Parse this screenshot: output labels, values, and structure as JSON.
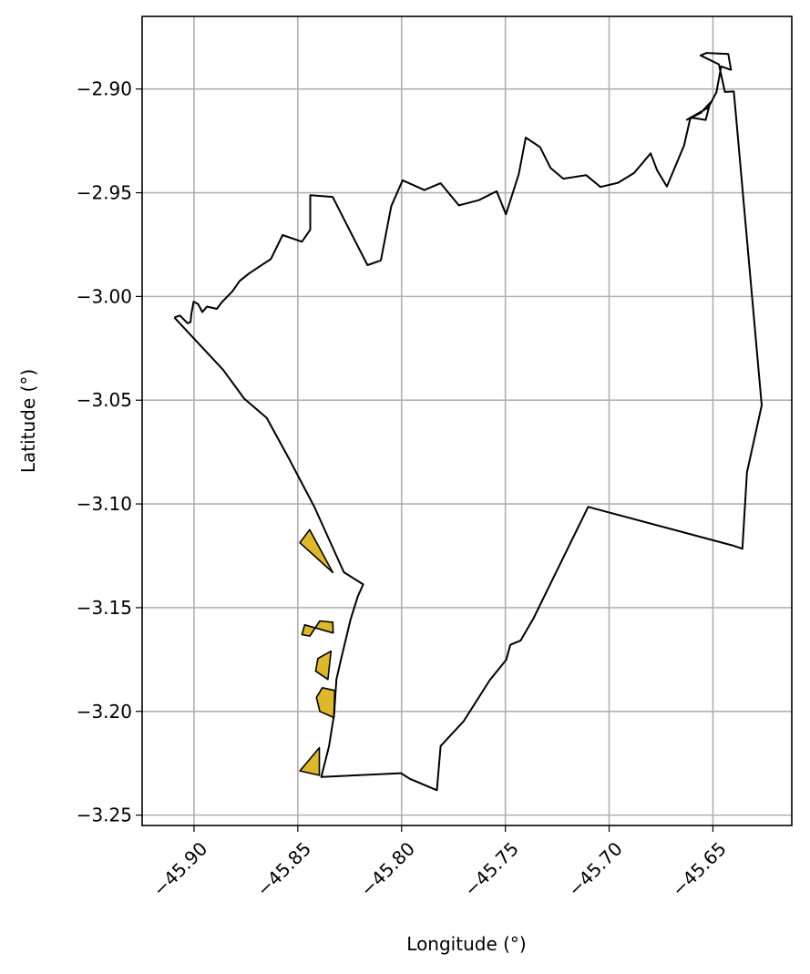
{
  "map": {
    "xlabel": "Longitude (°)",
    "ylabel": "Latitude (°)",
    "xlim": [
      -45.925,
      -45.612
    ],
    "ylim": [
      -3.255,
      -2.865
    ],
    "xticks": [
      -45.9,
      -45.85,
      -45.8,
      -45.75,
      -45.7,
      -45.65
    ],
    "xtick_labels": [
      "−45.90",
      "−45.85",
      "−45.80",
      "−45.75",
      "−45.70",
      "−45.65"
    ],
    "yticks": [
      -2.9,
      -2.95,
      -3.0,
      -3.05,
      -3.1,
      -3.15,
      -3.2,
      -3.25
    ],
    "ytick_labels": [
      "−2.90",
      "−2.95",
      "−3.00",
      "−3.05",
      "−3.10",
      "−3.15",
      "−3.20",
      "−3.25"
    ],
    "grid": true,
    "colors": {
      "boundary": "#000000",
      "highlight_fill": "#ddb92a",
      "highlight_edge": "#3a2fb8",
      "grid": "#b0b0b0"
    },
    "boundary": [
      [
        -45.9095,
        -3.0101
      ],
      [
        -45.9068,
        -3.0092
      ],
      [
        -45.9031,
        -3.0129
      ],
      [
        -45.9017,
        -3.0124
      ],
      [
        -45.9013,
        -3.0084
      ],
      [
        -45.9002,
        -3.0025
      ],
      [
        -45.898,
        -3.0037
      ],
      [
        -45.896,
        -3.0075
      ],
      [
        -45.8938,
        -3.0049
      ],
      [
        -45.889,
        -3.006
      ],
      [
        -45.8867,
        -3.0029
      ],
      [
        -45.8816,
        -2.9976
      ],
      [
        -45.878,
        -2.9925
      ],
      [
        -45.8736,
        -2.989
      ],
      [
        -45.867,
        -2.9846
      ],
      [
        -45.863,
        -2.982
      ],
      [
        -45.8573,
        -2.9704
      ],
      [
        -45.848,
        -2.9736
      ],
      [
        -45.844,
        -2.9678
      ],
      [
        -45.844,
        -2.9512
      ],
      [
        -45.8332,
        -2.952
      ],
      [
        -45.822,
        -2.974
      ],
      [
        -45.8164,
        -2.9849
      ],
      [
        -45.81,
        -2.9826
      ],
      [
        -45.805,
        -2.9565
      ],
      [
        -45.7995,
        -2.944
      ],
      [
        -45.789,
        -2.9487
      ],
      [
        -45.7812,
        -2.9454
      ],
      [
        -45.7724,
        -2.9561
      ],
      [
        -45.7628,
        -2.9536
      ],
      [
        -45.7542,
        -2.9493
      ],
      [
        -45.7497,
        -2.9604
      ],
      [
        -45.7435,
        -2.941
      ],
      [
        -45.7402,
        -2.9234
      ],
      [
        -45.7333,
        -2.928
      ],
      [
        -45.7282,
        -2.9381
      ],
      [
        -45.7221,
        -2.9432
      ],
      [
        -45.7111,
        -2.9415
      ],
      [
        -45.7042,
        -2.9472
      ],
      [
        -45.6957,
        -2.9452
      ],
      [
        -45.688,
        -2.9405
      ],
      [
        -45.68,
        -2.931
      ],
      [
        -45.6769,
        -2.9392
      ],
      [
        -45.6722,
        -2.947
      ],
      [
        -45.6639,
        -2.9272
      ],
      [
        -45.6608,
        -2.9137
      ],
      [
        -45.6535,
        -2.9149
      ],
      [
        -45.6513,
        -2.9065
      ],
      [
        -45.6558,
        -2.9115
      ],
      [
        -45.6625,
        -2.9148
      ],
      [
        -45.6522,
        -2.9089
      ],
      [
        -45.6483,
        -2.9016
      ],
      [
        -45.646,
        -2.8891
      ],
      [
        -45.6413,
        -2.8908
      ],
      [
        -45.6426,
        -2.8831
      ],
      [
        -45.653,
        -2.8826
      ],
      [
        -45.656,
        -2.8838
      ],
      [
        -45.6471,
        -2.8881
      ],
      [
        -45.6442,
        -2.9014
      ],
      [
        -45.6399,
        -2.9012
      ],
      [
        -45.6265,
        -3.0525
      ],
      [
        -45.6336,
        -3.0848
      ],
      [
        -45.6358,
        -3.1216
      ],
      [
        -45.6406,
        -3.12
      ],
      [
        -45.7101,
        -3.1014
      ],
      [
        -45.7364,
        -3.1551
      ],
      [
        -45.7427,
        -3.1659
      ],
      [
        -45.7476,
        -3.1679
      ],
      [
        -45.7496,
        -3.1751
      ],
      [
        -45.7575,
        -3.1849
      ],
      [
        -45.7701,
        -3.2047
      ],
      [
        -45.7812,
        -3.2167
      ],
      [
        -45.783,
        -3.238
      ],
      [
        -45.796,
        -3.2325
      ],
      [
        -45.8003,
        -3.2298
      ],
      [
        -45.8387,
        -3.2316
      ],
      [
        -45.835,
        -3.217
      ],
      [
        -45.8325,
        -3.2015
      ],
      [
        -45.8314,
        -3.1847
      ],
      [
        -45.829,
        -3.1741
      ],
      [
        -45.8246,
        -3.1558
      ],
      [
        -45.8211,
        -3.1446
      ],
      [
        -45.8185,
        -3.1388
      ],
      [
        -45.8278,
        -3.1329
      ],
      [
        -45.842,
        -3.1015
      ],
      [
        -45.854,
        -3.0786
      ],
      [
        -45.865,
        -3.0585
      ],
      [
        -45.8758,
        -3.0493
      ],
      [
        -45.886,
        -3.0353
      ],
      [
        -45.9095,
        -3.0101
      ]
    ],
    "patches": [
      [
        [
          -45.849,
          -3.1187
        ],
        [
          -45.8443,
          -3.1124
        ],
        [
          -45.8331,
          -3.1331
        ],
        [
          -45.849,
          -3.1187
        ]
      ],
      [
        [
          -45.833,
          -3.1622
        ],
        [
          -45.8467,
          -3.1583
        ],
        [
          -45.848,
          -3.163
        ],
        [
          -45.8442,
          -3.1637
        ],
        [
          -45.8394,
          -3.1564
        ],
        [
          -45.8331,
          -3.157
        ],
        [
          -45.833,
          -3.1622
        ]
      ],
      [
        [
          -45.834,
          -3.171
        ],
        [
          -45.8403,
          -3.1745
        ],
        [
          -45.8414,
          -3.1806
        ],
        [
          -45.8355,
          -3.1846
        ],
        [
          -45.834,
          -3.171
        ]
      ],
      [
        [
          -45.8322,
          -3.1899
        ],
        [
          -45.8382,
          -3.1886
        ],
        [
          -45.841,
          -3.1933
        ],
        [
          -45.8394,
          -3.2
        ],
        [
          -45.8326,
          -3.203
        ],
        [
          -45.8322,
          -3.1899
        ]
      ],
      [
        [
          -45.849,
          -3.2287
        ],
        [
          -45.8396,
          -3.2175
        ],
        [
          -45.8396,
          -3.2308
        ],
        [
          -45.849,
          -3.2287
        ]
      ]
    ]
  }
}
